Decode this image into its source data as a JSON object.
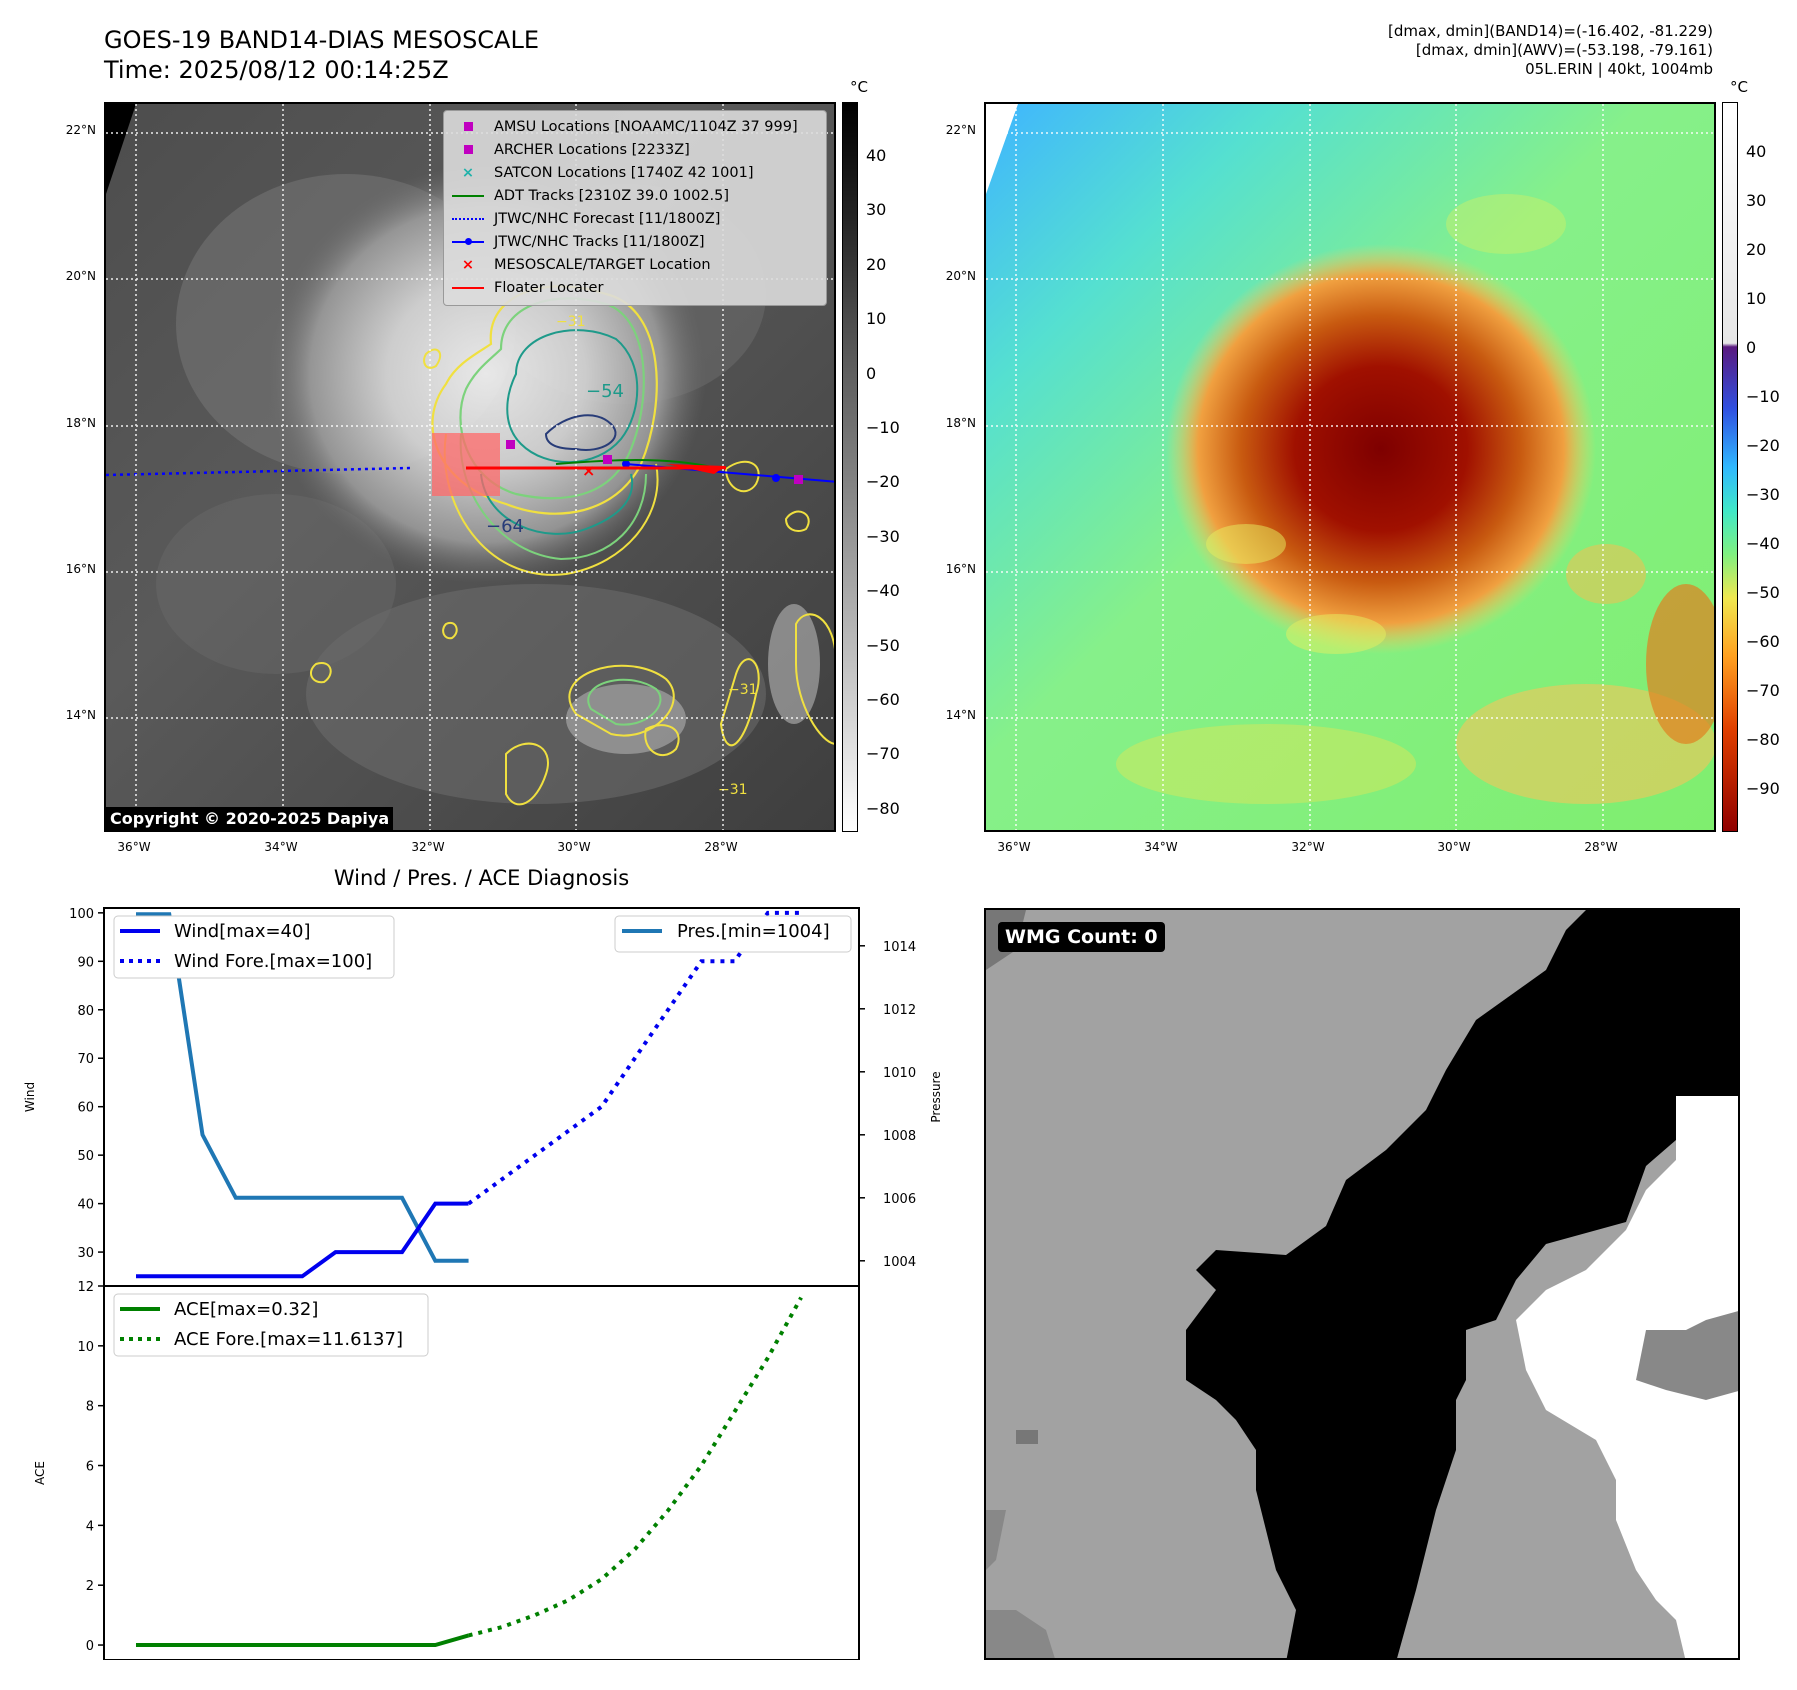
{
  "header": {
    "title_line1": "GOES-19 BAND14-DIAS MESOSCALE",
    "title_line2": "Time: 2025/08/12 00:14:25Z",
    "info_line1": "[dmax, dmin](BAND14)=(-16.402, -81.229)",
    "info_line2": "[dmax, dmin](AWV)=(-53.198, -79.161)",
    "info_line3": "05L.ERIN | 40kt, 1004mb"
  },
  "map_axes": {
    "lon_labels": [
      "36°W",
      "34°W",
      "32°W",
      "30°W",
      "28°W"
    ],
    "lat_labels": [
      "22°N",
      "20°N",
      "18°N",
      "16°N",
      "14°N"
    ]
  },
  "ir_panel": {
    "copyright": "Copyright © 2020-2025 Dapiya",
    "colorbar_unit": "°C",
    "colorbar_ticks": [
      "40",
      "30",
      "20",
      "10",
      "0",
      "−10",
      "−20",
      "−30",
      "−40",
      "−50",
      "−60",
      "−70",
      "−80"
    ],
    "contour_labels": [
      "−54",
      "−64",
      "−31",
      "−31",
      "−31"
    ],
    "legend": [
      {
        "label": "AMSU Locations [NOAAMC/1104Z 37 999]",
        "color": "#c000c0",
        "marker": "square"
      },
      {
        "label": "ARCHER Locations [2233Z]",
        "color": "#c000c0",
        "marker": "square"
      },
      {
        "label": "SATCON Locations [1740Z 42 1001]",
        "color": "#20b2aa",
        "marker": "x"
      },
      {
        "label": "ADT Tracks [2310Z 39.0 1002.5]",
        "color": "#008000",
        "marker": "line"
      },
      {
        "label": "JTWC/NHC Forecast [11/1800Z]",
        "color": "#0000ff",
        "marker": "dotted"
      },
      {
        "label": "JTWC/NHC Tracks [11/1800Z]",
        "color": "#0000ff",
        "marker": "line-dot"
      },
      {
        "label": "MESOSCALE/TARGET Location",
        "color": "#ff0000",
        "marker": "x"
      },
      {
        "label": "Floater Locater",
        "color": "#ff0000",
        "marker": "line"
      }
    ]
  },
  "awv_panel": {
    "colorbar_unit": "°C",
    "colorbar_ticks": [
      "40",
      "30",
      "20",
      "10",
      "0",
      "−10",
      "−20",
      "−30",
      "−40",
      "−50",
      "−60",
      "−70",
      "−80",
      "−90"
    ]
  },
  "wmg_panel": {
    "badge": "WMG Count: 0"
  },
  "diagnosis": {
    "title": "Wind / Pres. / ACE Diagnosis",
    "wind_ylabel": "Wind",
    "pres_ylabel": "Pressure",
    "ace_ylabel": "ACE",
    "wind_ticks": [
      "100",
      "90",
      "80",
      "70",
      "60",
      "50",
      "40",
      "30"
    ],
    "pres_ticks": [
      "1014",
      "1012",
      "1010",
      "1008",
      "1006",
      "1004"
    ],
    "ace_ticks": [
      "12",
      "10",
      "8",
      "6",
      "4",
      "2",
      "0"
    ],
    "legend_wind": "Wind[max=40]",
    "legend_wind_fore": "Wind Fore.[max=100]",
    "legend_pres": "Pres.[min=1004]",
    "legend_ace": "ACE[max=0.32]",
    "legend_ace_fore": "ACE Fore.[max=11.6137]",
    "colors": {
      "wind": "#0000ee",
      "pres": "#1f77b4",
      "ace": "#008000"
    }
  },
  "chart_data": [
    {
      "type": "line",
      "title": "Wind / Pres. / ACE Diagnosis",
      "ylabel": "Wind",
      "y2label": "Pressure",
      "ylim": [
        23,
        101
      ],
      "y2lim": [
        1003.2,
        1015.2
      ],
      "x": [
        0,
        1,
        2,
        3,
        4,
        5,
        6,
        7,
        8,
        9,
        10,
        11,
        12,
        13,
        14,
        15,
        16,
        17,
        18,
        19,
        20
      ],
      "series": [
        {
          "name": "Wind[max=40]",
          "axis": "left",
          "style": "solid",
          "points": [
            [
              0,
              25
            ],
            [
              2,
              25
            ],
            [
              4,
              25
            ],
            [
              5,
              25
            ],
            [
              6,
              30
            ],
            [
              7,
              30
            ],
            [
              8,
              30
            ],
            [
              9,
              40
            ],
            [
              10,
              40
            ]
          ]
        },
        {
          "name": "Wind Fore.[max=100]",
          "axis": "left",
          "style": "dotted",
          "points": [
            [
              10,
              40
            ],
            [
              11,
              45
            ],
            [
              12,
              50
            ],
            [
              13,
              55
            ],
            [
              14,
              60
            ],
            [
              15,
              70
            ],
            [
              16,
              80
            ],
            [
              17,
              90
            ],
            [
              18,
              90
            ],
            [
              19,
              100
            ],
            [
              20,
              100
            ]
          ]
        },
        {
          "name": "Pres.[min=1004]",
          "axis": "right",
          "style": "solid",
          "points": [
            [
              0,
              1015
            ],
            [
              1,
              1015
            ],
            [
              2,
              1008
            ],
            [
              3,
              1006
            ],
            [
              4,
              1006
            ],
            [
              5,
              1006
            ],
            [
              6,
              1006
            ],
            [
              7,
              1006
            ],
            [
              8,
              1006
            ],
            [
              9,
              1004
            ],
            [
              10,
              1004
            ]
          ]
        }
      ]
    },
    {
      "type": "line",
      "ylabel": "ACE",
      "ylim": [
        -0.5,
        12
      ],
      "x": [
        0,
        1,
        2,
        3,
        4,
        5,
        6,
        7,
        8,
        9,
        10,
        11,
        12,
        13,
        14,
        15,
        16,
        17,
        18,
        19,
        20
      ],
      "series": [
        {
          "name": "ACE[max=0.32]",
          "axis": "left",
          "style": "solid",
          "points": [
            [
              0,
              0
            ],
            [
              3,
              0
            ],
            [
              6,
              0
            ],
            [
              9,
              0
            ],
            [
              10,
              0.32
            ]
          ]
        },
        {
          "name": "ACE Fore.[max=11.6137]",
          "axis": "left",
          "style": "dotted",
          "points": [
            [
              10,
              0.32
            ],
            [
              11,
              0.6
            ],
            [
              12,
              1.0
            ],
            [
              13,
              1.5
            ],
            [
              14,
              2.2
            ],
            [
              15,
              3.2
            ],
            [
              16,
              4.5
            ],
            [
              17,
              6.0
            ],
            [
              18,
              7.8
            ],
            [
              19,
              9.6
            ],
            [
              20,
              11.6137
            ]
          ]
        }
      ]
    }
  ]
}
